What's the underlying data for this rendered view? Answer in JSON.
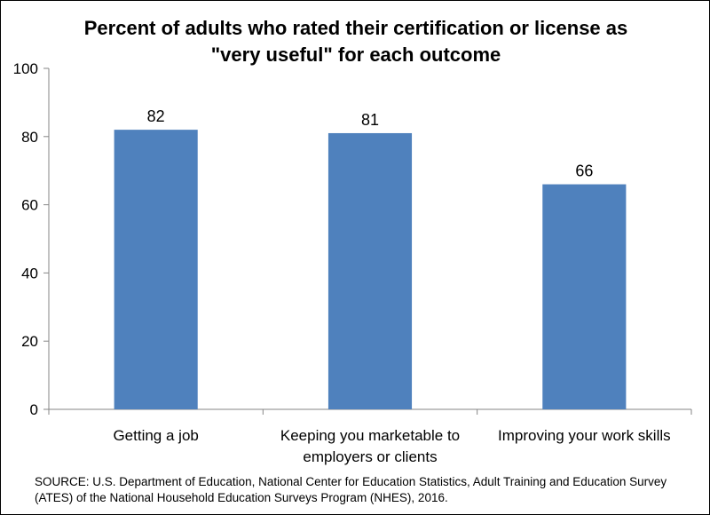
{
  "chart_data": {
    "type": "bar",
    "title_lines": [
      "Percent of adults who rated their certification or license as",
      "\"very useful\" for each outcome"
    ],
    "categories": [
      [
        "Getting a job"
      ],
      [
        "Keeping you marketable to",
        "employers or clients"
      ],
      [
        "Improving your work skills"
      ]
    ],
    "values": [
      82,
      81,
      66
    ],
    "ylim": [
      0,
      100
    ],
    "yticks": [
      0,
      20,
      40,
      60,
      80,
      100
    ],
    "bar_color": "#4F81BD",
    "grid": false,
    "legend": "none"
  },
  "source_text": "SOURCE: U.S. Department of Education, National Center for Education Statistics, Adult Training and Education Survey (ATES) of the National Household Education Surveys Program (NHES), 2016."
}
